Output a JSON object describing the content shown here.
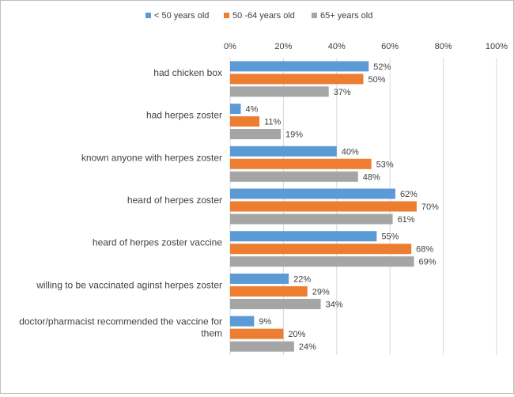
{
  "chart_data": {
    "type": "bar",
    "orientation": "horizontal",
    "title": "",
    "xlabel": "",
    "ylabel": "",
    "xlim": [
      0,
      100
    ],
    "x_ticks": [
      0,
      20,
      40,
      60,
      80,
      100
    ],
    "x_tick_labels": [
      "0%",
      "20%",
      "40%",
      "60%",
      "80%",
      "100%"
    ],
    "grid": "vertical",
    "legend_position": "top",
    "value_suffix": "%",
    "categories": [
      "had chicken box",
      "had herpes zoster",
      "known anyone with herpes zoster",
      "heard of herpes zoster",
      "heard of herpes zoster vaccine",
      "willing to be vaccinated aginst herpes zoster",
      "doctor/pharmacist recommended the vaccine for them"
    ],
    "series": [
      {
        "name": "< 50 years old",
        "color": "#5b9bd5",
        "values": [
          52,
          4,
          40,
          62,
          55,
          22,
          9
        ]
      },
      {
        "name": "50 -64 years old",
        "color": "#ed7d31",
        "values": [
          50,
          11,
          53,
          70,
          68,
          29,
          20
        ]
      },
      {
        "name": "65+ years old",
        "color": "#a5a5a5",
        "values": [
          37,
          19,
          48,
          61,
          69,
          34,
          24
        ]
      }
    ]
  }
}
